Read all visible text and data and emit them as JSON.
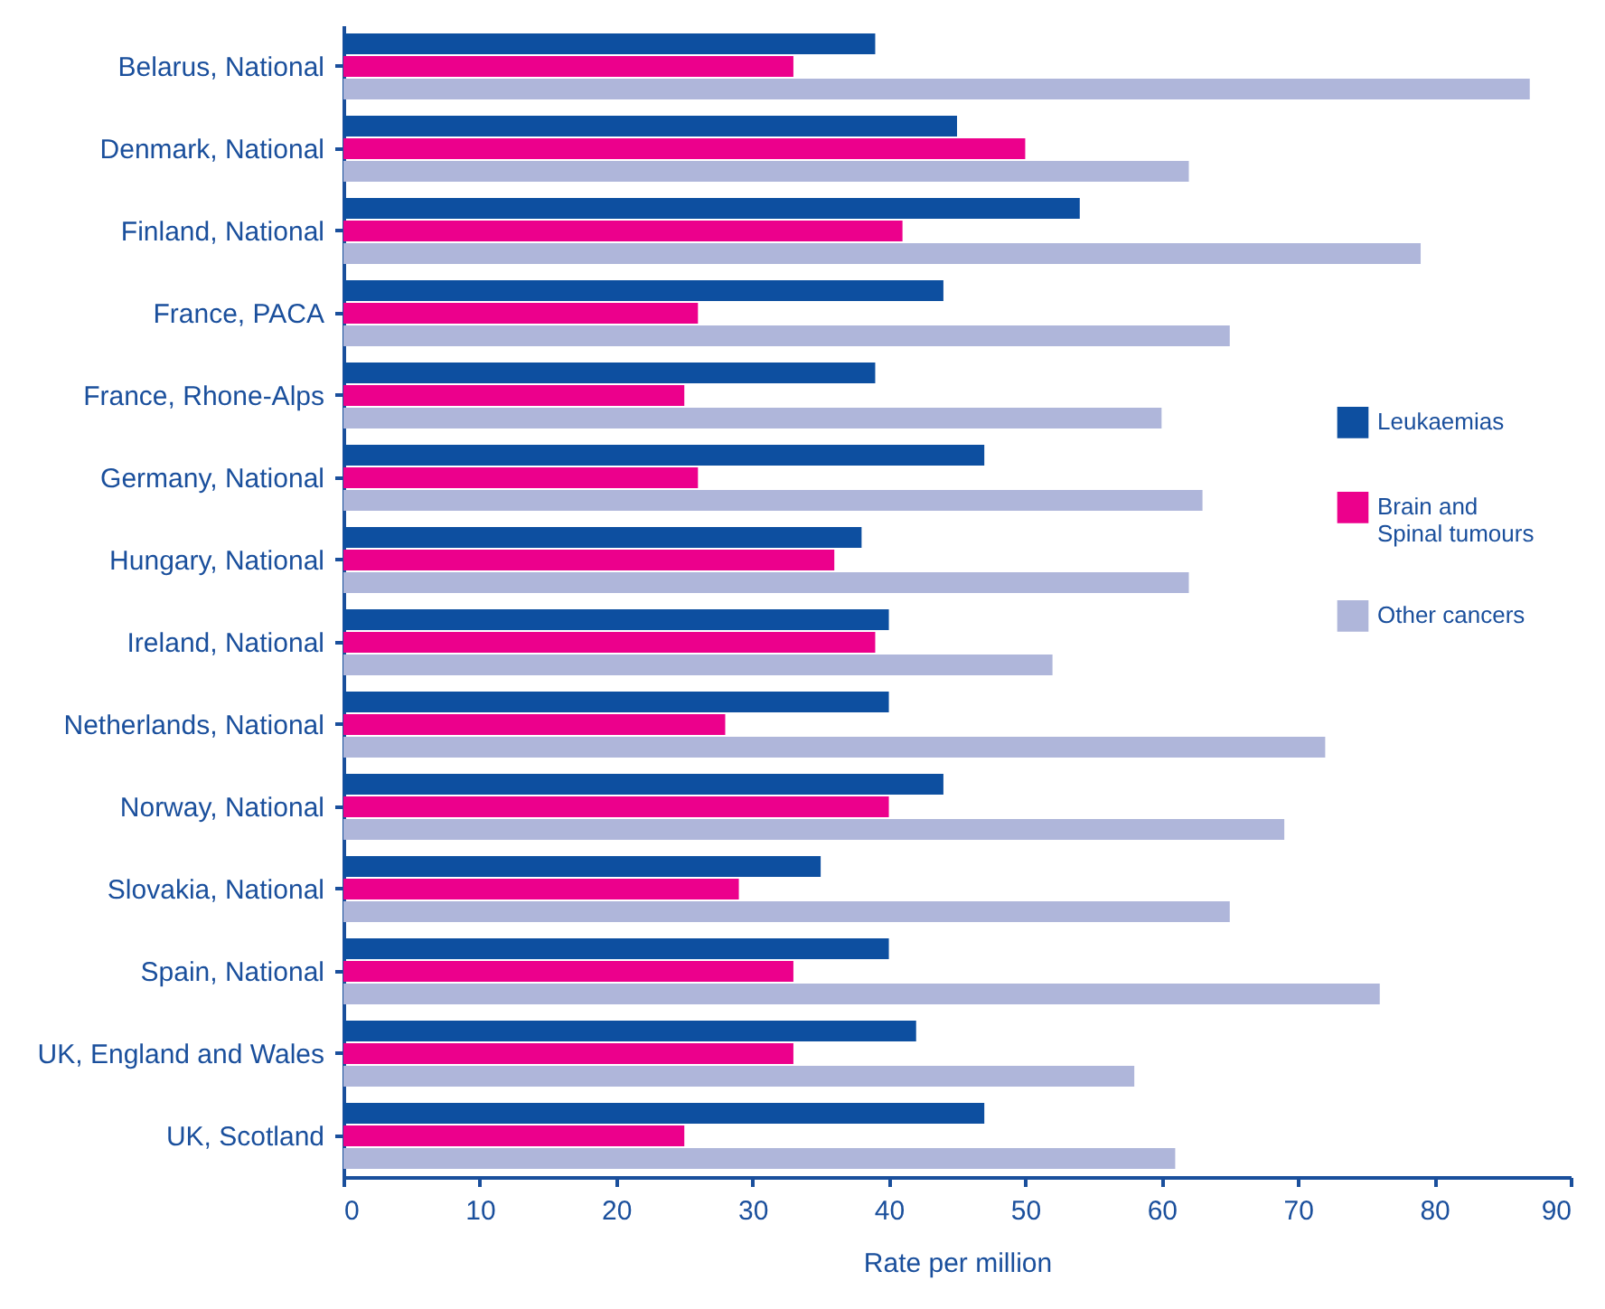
{
  "chart_data": {
    "type": "bar",
    "orientation": "horizontal",
    "xlabel": "Rate per million",
    "categories": [
      "Belarus, National",
      "Denmark, National",
      "Finland, National",
      "France, PACA",
      "France, Rhone-Alps",
      "Germany, National",
      "Hungary, National",
      "Ireland, National",
      "Netherlands, National",
      "Norway, National",
      "Slovakia, National",
      "Spain, National",
      "UK, England and Wales",
      "UK, Scotland"
    ],
    "series": [
      {
        "name": "Leukaemias",
        "color": "#0d4fa0",
        "values": [
          39,
          45,
          54,
          44,
          39,
          47,
          38,
          40,
          40,
          44,
          35,
          40,
          42,
          47
        ]
      },
      {
        "name": "Brain and Spinal tumours",
        "color": "#ec008c",
        "values": [
          33,
          50,
          41,
          26,
          25,
          26,
          36,
          39,
          28,
          40,
          29,
          33,
          33,
          25
        ]
      },
      {
        "name": "Other cancers",
        "color": "#afb6da",
        "values": [
          87,
          62,
          79,
          65,
          60,
          63,
          62,
          52,
          72,
          69,
          65,
          76,
          58,
          61
        ]
      }
    ],
    "xlim": [
      0,
      90
    ],
    "xticks": [
      0,
      10,
      20,
      30,
      40,
      50,
      60,
      70,
      80,
      90
    ],
    "grid": false,
    "legend": "right"
  }
}
